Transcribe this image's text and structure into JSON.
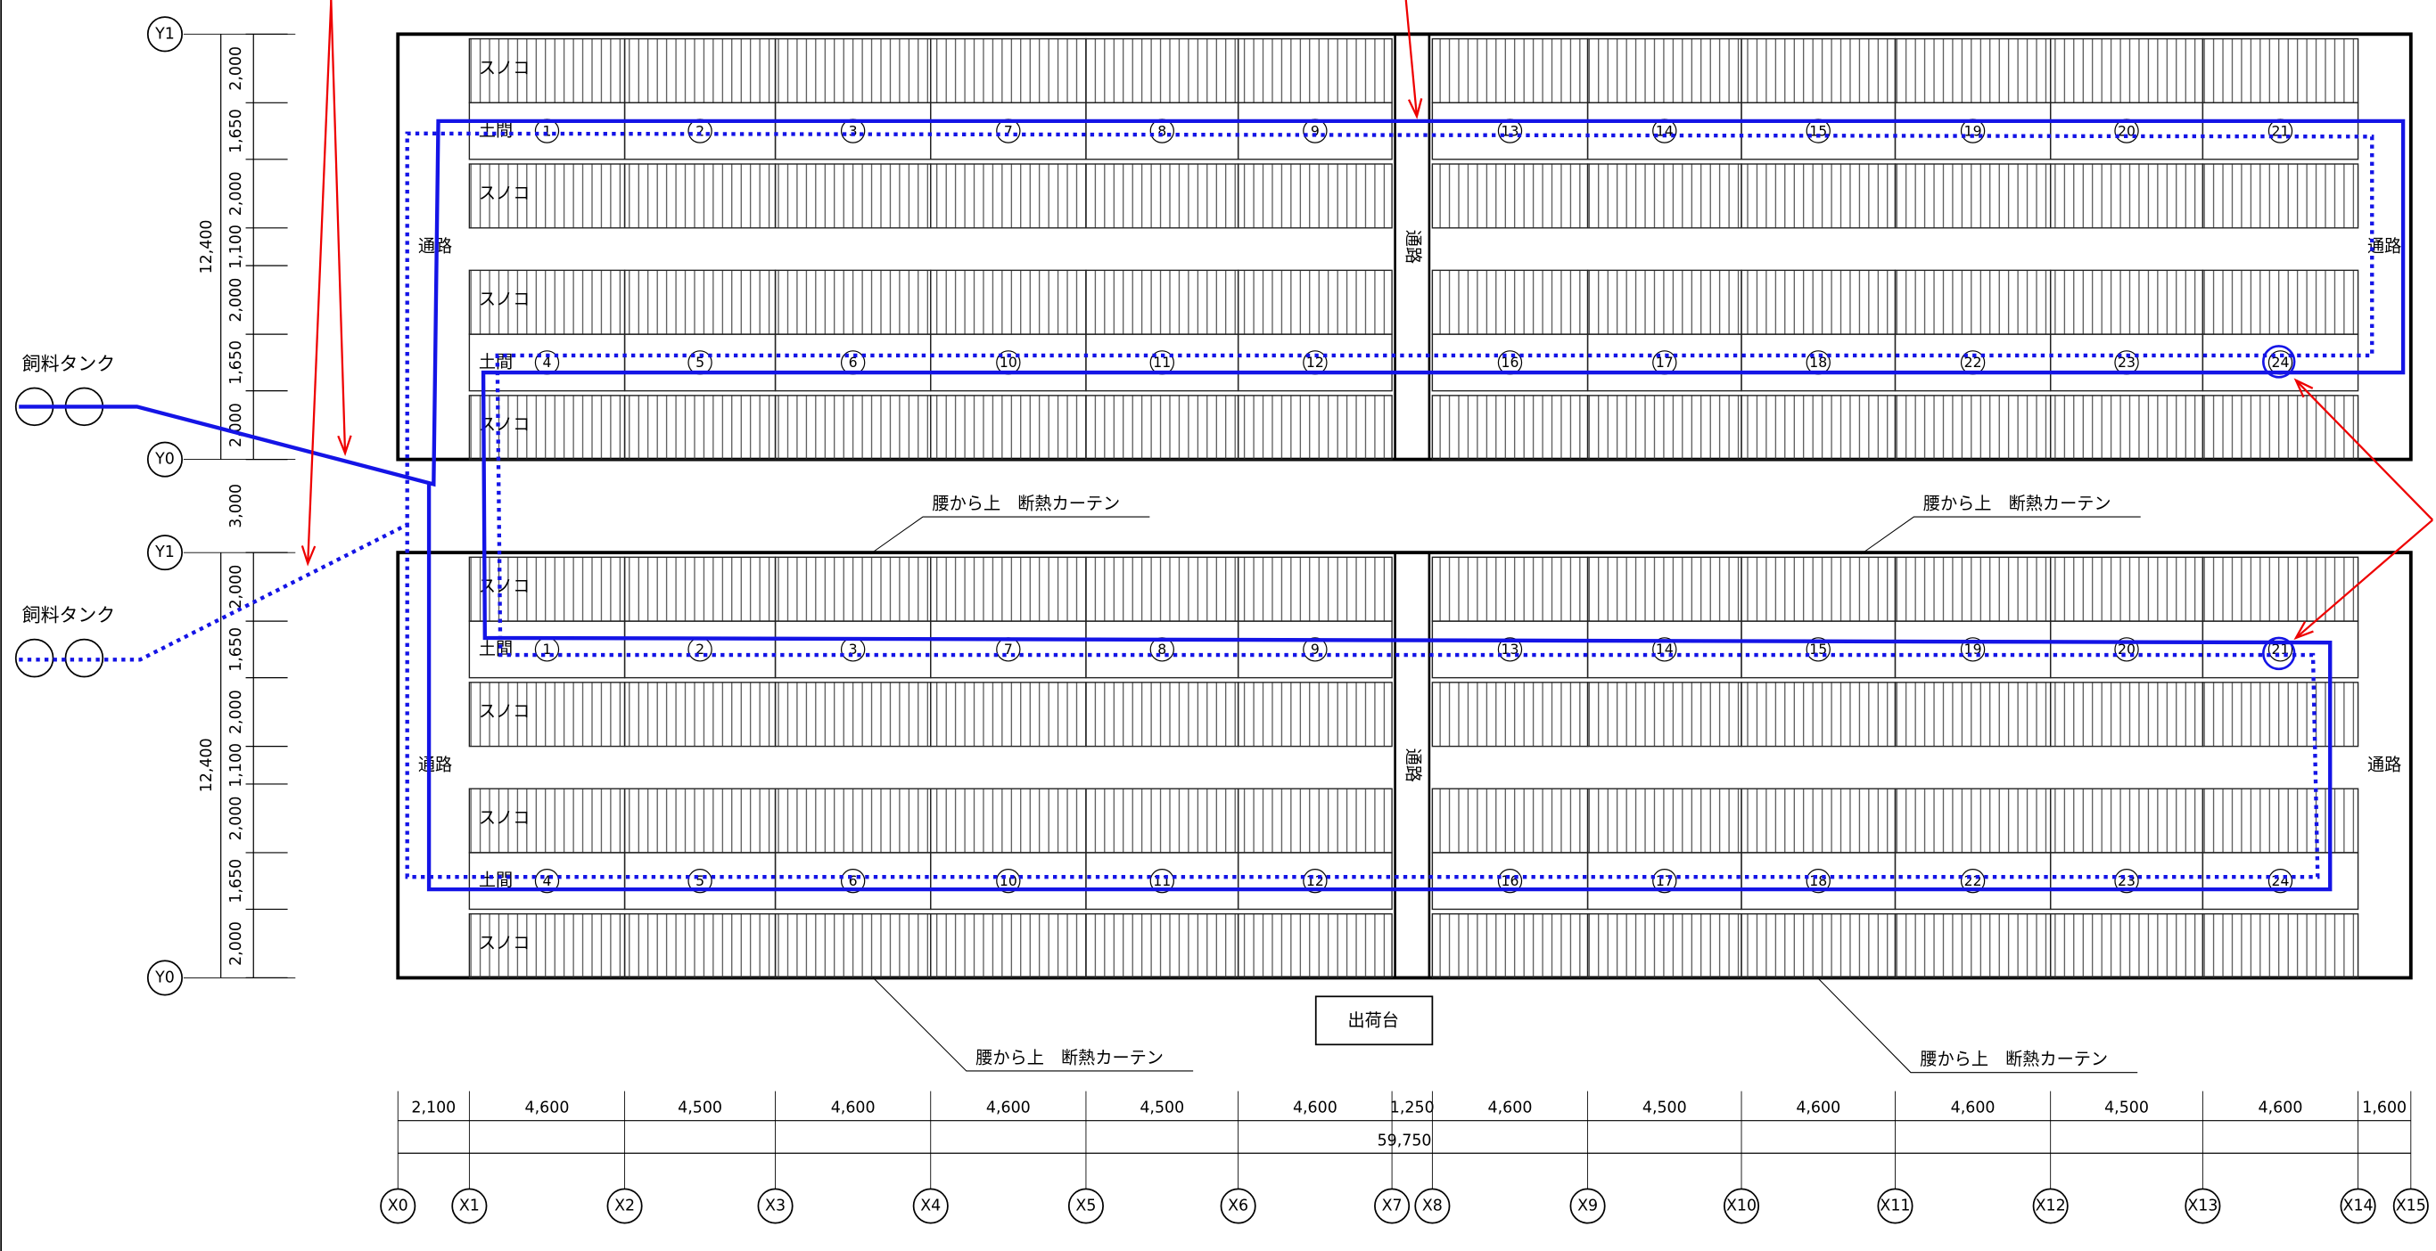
{
  "feed_tanks": [
    "飼料タンク",
    "飼料タンク"
  ],
  "barns": [
    {
      "rows": [
        "スノコ",
        "土間",
        "スノコ",
        "スノコ",
        "土間",
        "スノコ"
      ],
      "aisles": [
        "通路",
        "通路",
        "通路"
      ],
      "pens": [
        [
          "1",
          "2",
          "3",
          "7",
          "8",
          "9",
          "13",
          "14",
          "15",
          "19",
          "20",
          "21"
        ],
        [
          "4",
          "5",
          "6",
          "10",
          "11",
          "12",
          "16",
          "17",
          "18",
          "22",
          "23",
          "24"
        ]
      ]
    },
    {
      "rows": [
        "スノコ",
        "土間",
        "スノコ",
        "スノコ",
        "土間",
        "スノコ"
      ],
      "aisles": [
        "通路",
        "通路",
        "通路"
      ],
      "pens": [
        [
          "1",
          "2",
          "3",
          "7",
          "8",
          "9",
          "13",
          "14",
          "15",
          "19",
          "20",
          "21"
        ],
        [
          "4",
          "5",
          "6",
          "10",
          "11",
          "12",
          "16",
          "17",
          "18",
          "22",
          "23",
          "24"
        ]
      ]
    }
  ],
  "grid": {
    "y": [
      "Y1",
      "Y0",
      "Y1",
      "Y0"
    ],
    "x": [
      "X0",
      "X1",
      "X2",
      "X3",
      "X4",
      "X5",
      "X6",
      "X7",
      "X8",
      "X9",
      "X10",
      "X11",
      "X12",
      "X13",
      "X14",
      "X15"
    ]
  },
  "dimensions": {
    "left": [
      {
        "rows": [
          "2,000",
          "1,650",
          "2,000",
          "1,100",
          "2,000",
          "1,650",
          "2,000"
        ],
        "total": "12,400"
      },
      {
        "rows": [
          "2,000",
          "1,650",
          "2,000",
          "1,100",
          "2,000",
          "1,650",
          "2,000"
        ],
        "total": "12,400"
      }
    ],
    "gap": "3,000",
    "bottom": {
      "spans": [
        "2,100",
        "4,600",
        "4,500",
        "4,600",
        "4,600",
        "4,500",
        "4,600",
        "1,250",
        "4,600",
        "4,500",
        "4,600",
        "4,600",
        "4,500",
        "4,600",
        "1,600"
      ],
      "total": "59,750"
    }
  },
  "curtains": [
    "腰から上　断熱カーテン",
    "腰から上　断熱カーテン",
    "腰から上　断熱カーテン",
    "腰から上　断熱カーテン"
  ],
  "shipping_platform": "出荷台"
}
